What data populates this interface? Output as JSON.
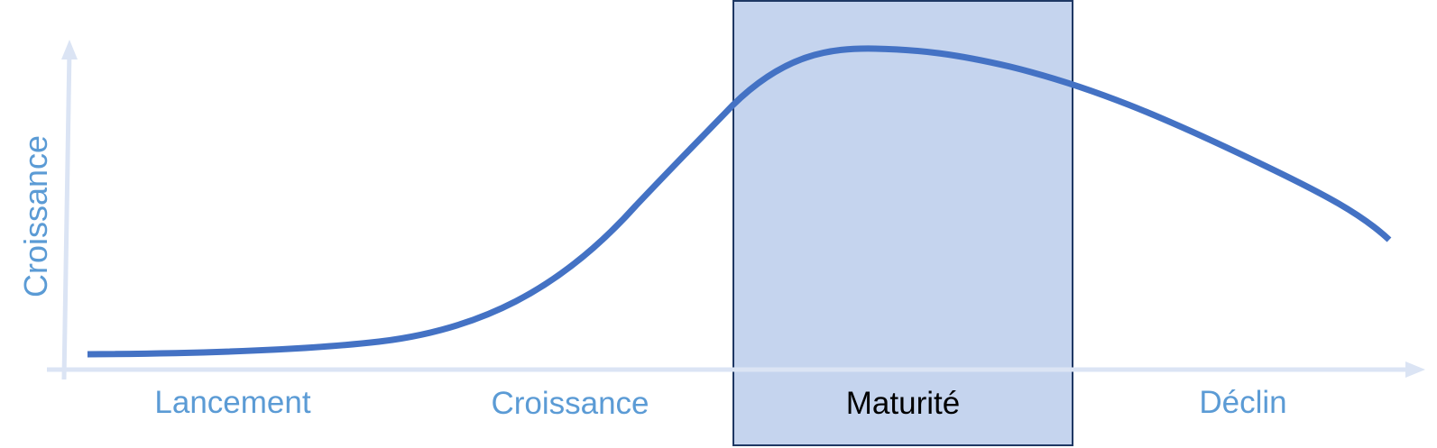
{
  "axes": {
    "y_label": "Croissance",
    "color": "#dbe4f4"
  },
  "phases": [
    {
      "label": "Lancement",
      "highlighted": false
    },
    {
      "label": "Croissance",
      "highlighted": false
    },
    {
      "label": "Maturité",
      "highlighted": true
    },
    {
      "label": "Déclin",
      "highlighted": false
    }
  ],
  "colors": {
    "curve": "#4472c4",
    "label": "#5b9bd5",
    "highlight_fill": "#c5d4ee",
    "highlight_border": "#1f3864",
    "highlight_label": "#000000"
  }
}
